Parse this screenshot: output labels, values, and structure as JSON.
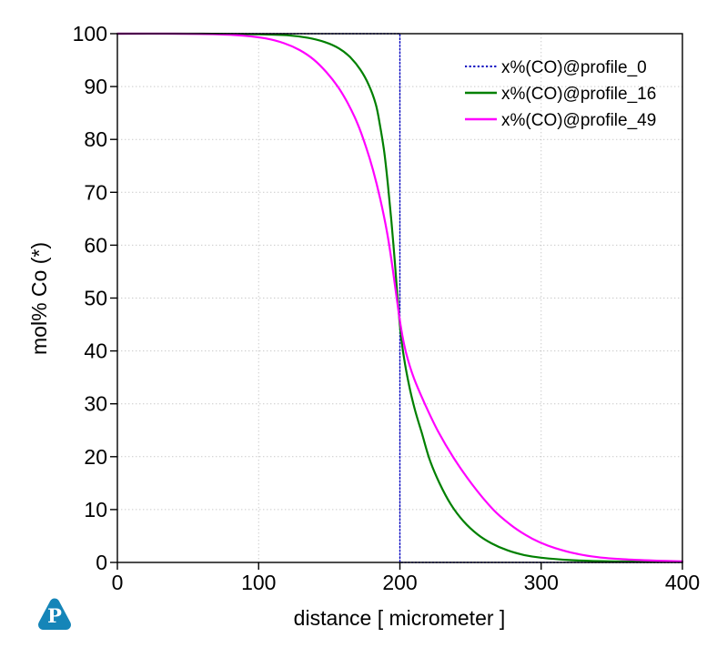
{
  "chart_data": {
    "type": "line",
    "title": "",
    "xlabel": "distance  [  micrometer  ]",
    "ylabel": "mol%  Co  (*)",
    "xlim": [
      0,
      400
    ],
    "ylim": [
      0,
      100
    ],
    "x_ticks": [
      0,
      100,
      200,
      300,
      400
    ],
    "y_ticks": [
      0,
      10,
      20,
      30,
      40,
      50,
      60,
      70,
      80,
      90,
      100
    ],
    "grid": "dotted",
    "grid_color": "#c9c9c9",
    "legend_position": "top-right",
    "series": [
      {
        "name": "x%(CO)@profile_0",
        "color": "#0000c0",
        "style": "dotted",
        "interpolation": "linear",
        "points": [
          [
            0,
            100
          ],
          [
            200,
            100
          ],
          [
            200,
            0
          ],
          [
            400,
            0
          ]
        ]
      },
      {
        "name": "x%(CO)@profile_16",
        "color": "#008000",
        "style": "solid",
        "interpolation": "smooth",
        "points": [
          [
            0,
            100
          ],
          [
            60,
            100
          ],
          [
            100,
            99.9
          ],
          [
            120,
            99.7
          ],
          [
            135,
            99.2
          ],
          [
            147,
            98.4
          ],
          [
            157,
            97.2
          ],
          [
            165,
            95.5
          ],
          [
            172,
            93.2
          ],
          [
            178,
            90.3
          ],
          [
            183,
            86.6
          ],
          [
            186,
            82.5
          ],
          [
            189,
            77.5
          ],
          [
            191.5,
            71.5
          ],
          [
            194,
            64.5
          ],
          [
            196.5,
            56.5
          ],
          [
            198.5,
            49.5
          ],
          [
            200.5,
            43.5
          ],
          [
            203,
            38.5
          ],
          [
            206.5,
            33.5
          ],
          [
            210.5,
            29
          ],
          [
            215.5,
            24.5
          ],
          [
            221,
            19.5
          ],
          [
            228,
            15
          ],
          [
            236,
            11
          ],
          [
            245,
            7.8
          ],
          [
            255,
            5.3
          ],
          [
            265,
            3.6
          ],
          [
            276,
            2.3
          ],
          [
            288,
            1.4
          ],
          [
            300,
            0.9
          ],
          [
            320,
            0.45
          ],
          [
            350,
            0.2
          ],
          [
            400,
            0.1
          ]
        ]
      },
      {
        "name": "x%(CO)@profile_49",
        "color": "#ff00ff",
        "style": "solid",
        "interpolation": "smooth",
        "points": [
          [
            0,
            100
          ],
          [
            40,
            100
          ],
          [
            70,
            99.9
          ],
          [
            90,
            99.6
          ],
          [
            105,
            99.1
          ],
          [
            118,
            98.2
          ],
          [
            129,
            96.9
          ],
          [
            139,
            95.1
          ],
          [
            148,
            92.7
          ],
          [
            156,
            90
          ],
          [
            163,
            86.9
          ],
          [
            170,
            83
          ],
          [
            176,
            78.6
          ],
          [
            181,
            74.2
          ],
          [
            186,
            68.8
          ],
          [
            191,
            62.3
          ],
          [
            195,
            55.4
          ],
          [
            198,
            49.5
          ],
          [
            201,
            44
          ],
          [
            204.5,
            39.5
          ],
          [
            210,
            34.8
          ],
          [
            218,
            29.8
          ],
          [
            227,
            24.8
          ],
          [
            238,
            19.8
          ],
          [
            251,
            14.8
          ],
          [
            266,
            10
          ],
          [
            278,
            7.2
          ],
          [
            289,
            5.2
          ],
          [
            299,
            3.8
          ],
          [
            310,
            2.7
          ],
          [
            324,
            1.7
          ],
          [
            340,
            1
          ],
          [
            358,
            0.6
          ],
          [
            380,
            0.35
          ],
          [
            400,
            0.2
          ]
        ]
      }
    ]
  },
  "branding": {
    "logo_letter": "P",
    "logo_color": "#1585b8"
  },
  "frame_color": "#000000",
  "background_color": "#ffffff"
}
